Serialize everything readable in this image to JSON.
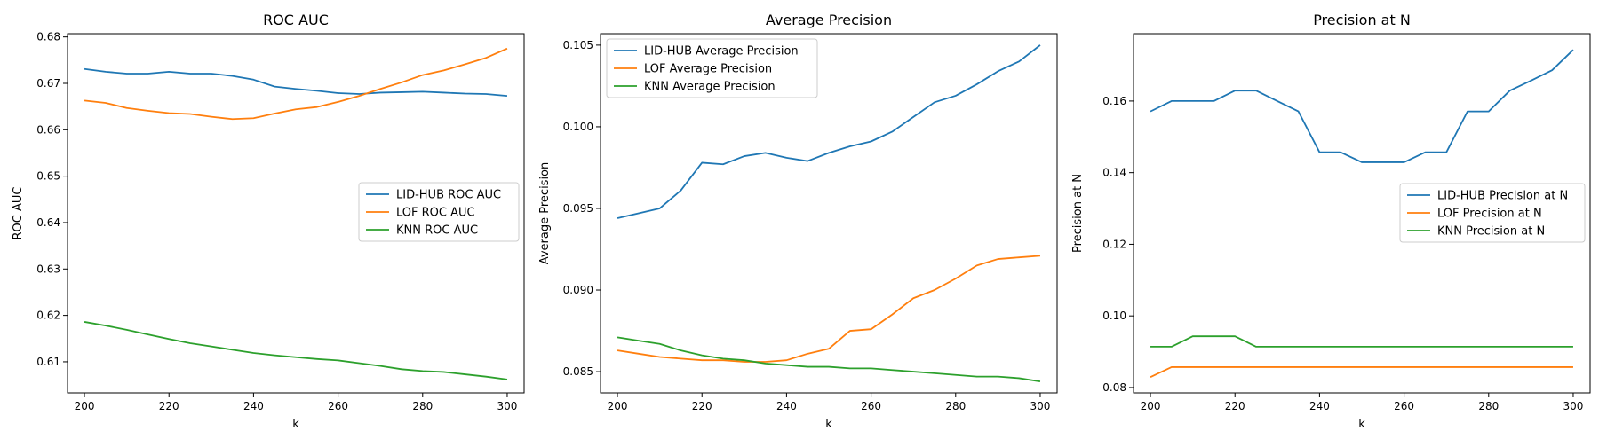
{
  "chart_data": [
    {
      "type": "line",
      "title": "ROC AUC",
      "xlabel": "k",
      "ylabel": "ROC AUC",
      "xlim": [
        196,
        304
      ],
      "ylim": [
        0.6033,
        0.6807
      ],
      "xticks": [
        200,
        220,
        240,
        260,
        280,
        300
      ],
      "xtick_labels": [
        "200",
        "220",
        "240",
        "260",
        "280",
        "300"
      ],
      "yticks": [
        0.61,
        0.62,
        0.63,
        0.64,
        0.65,
        0.66,
        0.67,
        0.68
      ],
      "ytick_labels": [
        "0.61",
        "0.62",
        "0.63",
        "0.64",
        "0.65",
        "0.66",
        "0.67",
        "0.68"
      ],
      "legend_position": "center-right",
      "grid": false,
      "x": [
        200,
        205,
        210,
        215,
        220,
        225,
        230,
        235,
        240,
        245,
        250,
        255,
        260,
        265,
        270,
        275,
        280,
        285,
        290,
        295,
        300
      ],
      "series": [
        {
          "name": "LID-HUB ROC AUC",
          "color": "#1f77b4",
          "values": [
            0.6731,
            0.6725,
            0.6721,
            0.6721,
            0.6725,
            0.6721,
            0.6721,
            0.6716,
            0.6708,
            0.6693,
            0.6688,
            0.6684,
            0.6679,
            0.6677,
            0.668,
            0.6681,
            0.6682,
            0.668,
            0.6678,
            0.6677,
            0.6673
          ]
        },
        {
          "name": "LOF ROC AUC",
          "color": "#ff7f0e",
          "values": [
            0.6663,
            0.6658,
            0.6647,
            0.6641,
            0.6636,
            0.6634,
            0.6628,
            0.6623,
            0.6625,
            0.6635,
            0.6644,
            0.6649,
            0.666,
            0.6673,
            0.6688,
            0.6702,
            0.6718,
            0.6728,
            0.6741,
            0.6755,
            0.6775
          ]
        },
        {
          "name": "KNN ROC AUC",
          "color": "#2ca02c",
          "values": [
            0.6186,
            0.6178,
            0.6169,
            0.6159,
            0.6149,
            0.614,
            0.6133,
            0.6126,
            0.6119,
            0.6114,
            0.611,
            0.6106,
            0.6103,
            0.6097,
            0.6091,
            0.6084,
            0.608,
            0.6078,
            0.6073,
            0.6068,
            0.6062
          ]
        }
      ]
    },
    {
      "type": "line",
      "title": "Average Precision",
      "xlabel": "k",
      "ylabel": "Average Precision",
      "xlim": [
        196,
        304
      ],
      "ylim": [
        0.0837,
        0.1057
      ],
      "xticks": [
        200,
        220,
        240,
        260,
        280,
        300
      ],
      "xtick_labels": [
        "200",
        "220",
        "240",
        "260",
        "280",
        "300"
      ],
      "yticks": [
        0.085,
        0.09,
        0.095,
        0.1,
        0.105
      ],
      "ytick_labels": [
        "0.085",
        "0.090",
        "0.095",
        "0.100",
        "0.105"
      ],
      "legend_position": "top-left",
      "grid": false,
      "x": [
        200,
        205,
        210,
        215,
        220,
        225,
        230,
        235,
        240,
        245,
        250,
        255,
        260,
        265,
        270,
        275,
        280,
        285,
        290,
        295,
        300
      ],
      "series": [
        {
          "name": "LID-HUB Average Precision",
          "color": "#1f77b4",
          "values": [
            0.0944,
            0.0947,
            0.095,
            0.0961,
            0.0978,
            0.0977,
            0.0982,
            0.0984,
            0.0981,
            0.0979,
            0.0984,
            0.0988,
            0.0991,
            0.0997,
            0.1006,
            0.1015,
            0.1019,
            0.1026,
            0.1034,
            0.104,
            0.105
          ]
        },
        {
          "name": "LOF Average Precision",
          "color": "#ff7f0e",
          "values": [
            0.0863,
            0.0861,
            0.0859,
            0.0858,
            0.0857,
            0.0857,
            0.0856,
            0.0856,
            0.0857,
            0.0861,
            0.0864,
            0.0875,
            0.0876,
            0.0885,
            0.0895,
            0.09,
            0.0907,
            0.0915,
            0.0919,
            0.092,
            0.0921
          ]
        },
        {
          "name": "KNN Average Precision",
          "color": "#2ca02c",
          "values": [
            0.0871,
            0.0869,
            0.0867,
            0.0863,
            0.086,
            0.0858,
            0.0857,
            0.0855,
            0.0854,
            0.0853,
            0.0853,
            0.0852,
            0.0852,
            0.0851,
            0.085,
            0.0849,
            0.0848,
            0.0847,
            0.0847,
            0.0846,
            0.0844
          ]
        }
      ]
    },
    {
      "type": "line",
      "title": "Precision at N",
      "xlabel": "k",
      "ylabel": "Precision at N",
      "xlim": [
        196,
        304
      ],
      "ylim": [
        0.0785,
        0.1788
      ],
      "xticks": [
        200,
        220,
        240,
        260,
        280,
        300
      ],
      "xtick_labels": [
        "200",
        "220",
        "240",
        "260",
        "280",
        "300"
      ],
      "yticks": [
        0.08,
        0.1,
        0.12,
        0.14,
        0.16
      ],
      "ytick_labels": [
        "0.08",
        "0.10",
        "0.12",
        "0.14",
        "0.16"
      ],
      "legend_position": "center-right",
      "grid": false,
      "x": [
        200,
        205,
        210,
        215,
        220,
        225,
        230,
        235,
        240,
        245,
        250,
        255,
        260,
        265,
        270,
        275,
        280,
        285,
        290,
        295,
        300
      ],
      "series": [
        {
          "name": "LID-HUB Precision at N",
          "color": "#1f77b4",
          "values": [
            0.1571,
            0.16,
            0.16,
            0.16,
            0.1629,
            0.1629,
            0.16,
            0.1571,
            0.1457,
            0.1457,
            0.1429,
            0.1429,
            0.1429,
            0.1457,
            0.1457,
            0.1571,
            0.1571,
            0.1629,
            0.1657,
            0.1686,
            0.1743
          ]
        },
        {
          "name": "LOF Precision at N",
          "color": "#ff7f0e",
          "values": [
            0.0829,
            0.0857,
            0.0857,
            0.0857,
            0.0857,
            0.0857,
            0.0857,
            0.0857,
            0.0857,
            0.0857,
            0.0857,
            0.0857,
            0.0857,
            0.0857,
            0.0857,
            0.0857,
            0.0857,
            0.0857,
            0.0857,
            0.0857,
            0.0857
          ]
        },
        {
          "name": "KNN Precision at N",
          "color": "#2ca02c",
          "values": [
            0.0914,
            0.0914,
            0.0943,
            0.0943,
            0.0943,
            0.0914,
            0.0914,
            0.0914,
            0.0914,
            0.0914,
            0.0914,
            0.0914,
            0.0914,
            0.0914,
            0.0914,
            0.0914,
            0.0914,
            0.0914,
            0.0914,
            0.0914,
            0.0914
          ]
        }
      ]
    }
  ]
}
